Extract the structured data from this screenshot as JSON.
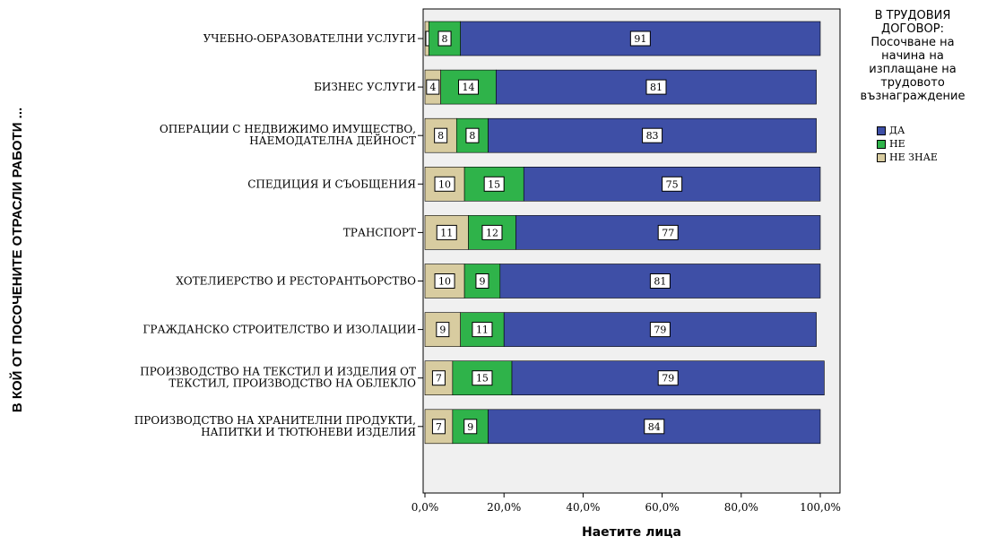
{
  "colors": {
    "plot_bg": "#f0f0f0",
    "series": [
      "#3e4fa6",
      "#2fb34a",
      "#d8ccA0"
    ]
  },
  "legend": {
    "title_lines": [
      "В ТРУДОВИЯ",
      "ДОГОВОР:",
      "Посочване на",
      "начина на",
      "изплащане на",
      "трудовото",
      "възнаграждение"
    ],
    "items": [
      "ДА",
      "НЕ",
      "НЕ ЗНАЕ"
    ]
  },
  "chart_data": {
    "type": "bar",
    "orientation": "horizontal",
    "stacked": "percent",
    "categories": [
      [
        "УЧЕБНО-ОБРАЗОВАТЕЛНИ УСЛУГИ"
      ],
      [
        "БИЗНЕС УСЛУГИ"
      ],
      [
        "ОПЕРАЦИИ С НЕДВИЖИМО ИМУЩЕСТВО,",
        "НАЕМОДАТЕЛНА ДЕЙНОСТ"
      ],
      [
        "СПЕДИЦИЯ И СЪОБЩЕНИЯ"
      ],
      [
        "ТРАНСПОРТ"
      ],
      [
        "ХОТЕЛИЕРСТВО И РЕСТОРАНТЬОРСТВО"
      ],
      [
        "ГРАЖДАНСКО СТРОИТЕЛСТВО И ИЗОЛАЦИИ"
      ],
      [
        "ПРОИЗВОДСТВО НА ТЕКСТИЛ И ИЗДЕЛИЯ ОТ",
        "ТЕКСТИЛ, ПРОИЗВОДСТВО НА ОБЛЕКЛО"
      ],
      [
        "ПРОИЗВОДСТВО НА ХРАНИТЕЛНИ ПРОДУКТИ,",
        "НАПИТКИ И ТЮТЮНЕВИ ИЗДЕЛИЯ"
      ]
    ],
    "series": [
      {
        "name": "НЕ ЗНАЕ",
        "values": [
          1,
          4,
          8,
          10,
          11,
          10,
          9,
          7,
          7
        ]
      },
      {
        "name": "НЕ",
        "values": [
          8,
          14,
          8,
          15,
          12,
          9,
          11,
          15,
          9
        ]
      },
      {
        "name": "ДА",
        "values": [
          91,
          81,
          83,
          75,
          77,
          81,
          79,
          79,
          84
        ]
      }
    ],
    "xticks": [
      "0,0%",
      "20,0%",
      "40,0%",
      "60,0%",
      "80,0%",
      "100,0%"
    ],
    "xlim": [
      0,
      100
    ],
    "xlabel": "Наетите лица",
    "ylabel": "В КОЙ ОТ ПОСОЧЕНИТЕ ОТРАСЛИ РАБОТИ ...",
    "legend_position": "right"
  }
}
